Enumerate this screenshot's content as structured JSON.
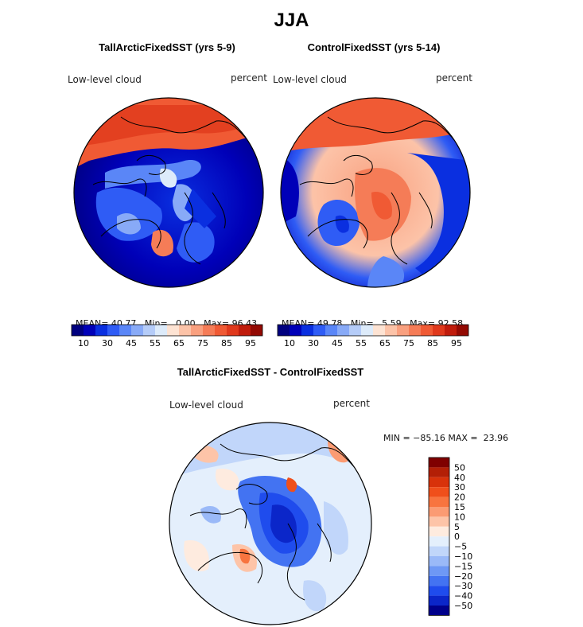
{
  "figure_title": "JJA",
  "panels": [
    {
      "title": "TallArcticFixedSST (yrs 5-9)",
      "variable": "Low-level cloud",
      "units": "percent",
      "stats": {
        "mean_label": "MEAN=",
        "mean": "40.77",
        "min_label": "Min=",
        "min": "0.00",
        "max_label": "Max=",
        "max": "96.43"
      }
    },
    {
      "title": "ControlFixedSST (yrs 5-14)",
      "variable": "Low-level cloud",
      "units": "percent",
      "stats": {
        "mean_label": "MEAN=",
        "mean": "49.78",
        "min_label": "Min=",
        "min": "5.59",
        "max_label": "Max=",
        "max": "92.58"
      }
    },
    {
      "title": "TallArcticFixedSST - ControlFixedSST",
      "variable": "Low-level cloud",
      "units": "percent",
      "stats": {
        "text": "MIN = −85.16 MAX =  23.96"
      }
    }
  ],
  "colorbars": {
    "absolute": {
      "colors": [
        "#00007f",
        "#0000b8",
        "#0a2fe0",
        "#2f5cf5",
        "#5a86f7",
        "#88aaf7",
        "#b5ccf8",
        "#ddebfa",
        "#fde3d3",
        "#fcc3a8",
        "#f9a07f",
        "#f57c57",
        "#f05a34",
        "#e0391c",
        "#c01c0c",
        "#930a03"
      ],
      "tick_labels": [
        "10",
        "30",
        "45",
        "55",
        "65",
        "75",
        "85",
        "95"
      ]
    },
    "difference": {
      "colors": [
        "#7f0000",
        "#b31f06",
        "#d8320a",
        "#f04f1b",
        "#f8743f",
        "#fb9b73",
        "#fdc4a8",
        "#feebdf",
        "#e4effc",
        "#c1d6fa",
        "#9ab9f8",
        "#6e98f5",
        "#4373f2",
        "#1f4ced",
        "#0b26c9",
        "#00008b"
      ],
      "tick_labels": [
        "50",
        "40",
        "30",
        "20",
        "15",
        "10",
        "5",
        "0",
        "−5",
        "−10",
        "−15",
        "−20",
        "−30",
        "−40",
        "−50"
      ]
    }
  },
  "chart_data": [
    {
      "type": "heatmap",
      "title": "TallArcticFixedSST (yrs 5-9)",
      "projection": "north polar stereographic",
      "variable": "Low-level cloud",
      "units": "percent",
      "mean": 40.77,
      "min": 0.0,
      "max": 96.43,
      "colorbar_ticks": [
        10,
        30,
        45,
        55,
        65,
        75,
        85,
        95
      ]
    },
    {
      "type": "heatmap",
      "title": "ControlFixedSST (yrs 5-14)",
      "projection": "north polar stereographic",
      "variable": "Low-level cloud",
      "units": "percent",
      "mean": 49.78,
      "min": 5.59,
      "max": 92.58,
      "colorbar_ticks": [
        10,
        30,
        45,
        55,
        65,
        75,
        85,
        95
      ]
    },
    {
      "type": "heatmap",
      "title": "TallArcticFixedSST - ControlFixedSST",
      "projection": "north polar stereographic",
      "variable": "Low-level cloud",
      "units": "percent",
      "min": -85.16,
      "max": 23.96,
      "colorbar_ticks": [
        50,
        40,
        30,
        20,
        15,
        10,
        5,
        0,
        -5,
        -10,
        -15,
        -20,
        -30,
        -40,
        -50
      ]
    }
  ]
}
